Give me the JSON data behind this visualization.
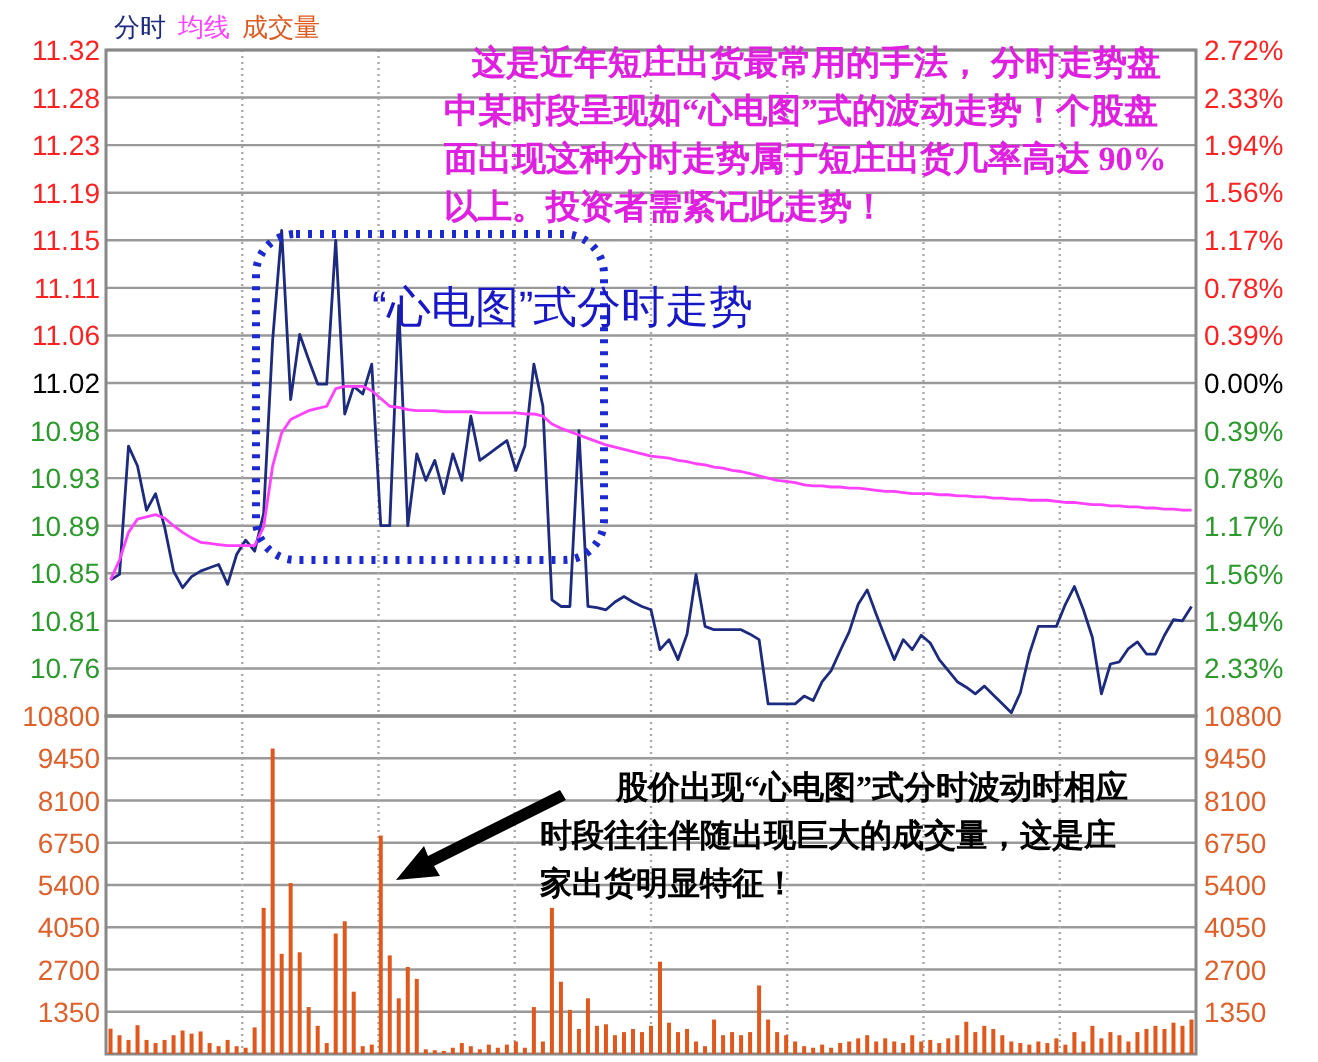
{
  "chart_data": [
    {
      "type": "line",
      "categories": [
        null,
        null,
        null,
        null,
        null,
        null,
        null,
        null,
        null,
        null,
        null,
        null,
        null,
        null,
        null,
        null,
        null,
        null,
        null,
        null,
        null,
        null,
        null,
        null,
        null,
        null,
        null,
        null,
        null,
        null,
        null,
        null,
        null,
        null,
        null,
        null,
        null,
        null,
        null,
        null,
        null,
        null,
        null,
        null,
        null,
        null,
        null,
        null,
        null,
        null,
        null,
        null,
        null,
        null,
        null,
        null,
        null,
        null,
        null,
        null,
        null,
        null,
        null,
        null,
        null,
        null,
        null,
        null,
        null,
        null,
        null,
        null,
        null,
        null,
        null,
        null,
        null,
        null,
        null,
        null,
        null,
        null,
        null,
        null,
        null,
        null,
        null,
        null,
        null,
        null,
        null,
        null,
        null,
        null,
        null,
        null,
        null,
        null,
        null,
        null,
        null,
        null,
        null,
        null,
        null,
        null,
        null,
        null,
        null,
        null,
        null,
        null,
        null,
        null,
        null,
        null,
        null,
        null,
        null,
        null,
        null
      ],
      "ylim": [
        10.719,
        11.321
      ],
      "yticks": [
        {
          "value": 11.321,
          "label": "11.32"
        },
        {
          "value": 11.278,
          "label": "11.28"
        },
        {
          "value": 11.235,
          "label": "11.23"
        },
        {
          "value": 11.192,
          "label": "11.19"
        },
        {
          "value": 11.149,
          "label": "11.15"
        },
        {
          "value": 11.106,
          "label": "11.11"
        },
        {
          "value": 11.063,
          "label": "11.06"
        },
        {
          "value": 11.02,
          "label": "11.02"
        },
        {
          "value": 10.977,
          "label": "10.98"
        },
        {
          "value": 10.934,
          "label": "10.93"
        },
        {
          "value": 10.891,
          "label": "10.89"
        },
        {
          "value": 10.848,
          "label": "10.85"
        },
        {
          "value": 10.805,
          "label": "10.81"
        },
        {
          "value": 10.762,
          "label": "10.76"
        }
      ],
      "y2lim": [
        -2.72,
        2.72
      ],
      "y2ticks": [
        {
          "value": 2.72,
          "label": "2.72%"
        },
        {
          "value": 2.33,
          "label": "2.33%"
        },
        {
          "value": 1.94,
          "label": "1.94%"
        },
        {
          "value": 1.56,
          "label": "1.56%"
        },
        {
          "value": 1.17,
          "label": "1.17%"
        },
        {
          "value": 0.78,
          "label": "0.78%"
        },
        {
          "value": 0.39,
          "label": "0.39%"
        },
        {
          "value": 0,
          "label": "0.00%"
        },
        {
          "value": -0.39,
          "label": "0.39%"
        },
        {
          "value": -0.78,
          "label": "0.78%"
        },
        {
          "value": -1.17,
          "label": "1.17%"
        },
        {
          "value": -1.56,
          "label": "1.56%"
        },
        {
          "value": -1.94,
          "label": "1.94%"
        },
        {
          "value": -2.33,
          "label": "2.33%"
        }
      ],
      "grid": true,
      "tick_labels": "y",
      "series": [
        {
          "name": "分时",
          "color": "#1c2a80",
          "values": [
            10.842,
            10.847,
            10.963,
            10.945,
            10.905,
            10.92,
            10.89,
            10.85,
            10.835,
            10.845,
            10.85,
            10.853,
            10.856,
            10.838,
            10.865,
            10.878,
            10.868,
            10.902,
            11.059,
            11.158,
            11.005,
            11.064,
            11.041,
            11.019,
            11.019,
            11.149,
            10.992,
            11.017,
            11.01,
            11.037,
            10.891,
            10.891,
            11.09,
            10.891,
            10.956,
            10.932,
            10.95,
            10.92,
            10.956,
            10.932,
            10.99,
            10.95,
            10.956,
            10.962,
            10.968,
            10.941,
            10.963,
            11.037,
            10.999,
            10.824,
            10.818,
            10.818,
            10.977,
            10.818,
            10.817,
            10.815,
            10.822,
            10.827,
            10.822,
            10.818,
            10.815,
            10.779,
            10.788,
            10.77,
            10.793,
            10.847,
            10.8,
            10.797,
            10.797,
            10.797,
            10.797,
            10.793,
            10.788,
            10.73,
            10.73,
            10.73,
            10.73,
            10.737,
            10.733,
            10.75,
            10.76,
            10.778,
            10.795,
            10.82,
            10.833,
            10.811,
            10.79,
            10.77,
            10.788,
            10.779,
            10.792,
            10.785,
            10.77,
            10.76,
            10.75,
            10.745,
            10.739,
            10.746,
            10.738,
            10.73,
            10.722,
            10.74,
            10.775,
            10.8,
            10.8,
            10.8,
            10.82,
            10.836,
            10.815,
            10.79,
            10.739,
            10.766,
            10.768,
            10.78,
            10.786,
            10.775,
            10.775,
            10.792,
            10.806,
            10.805,
            10.818
          ]
        },
        {
          "name": "均线",
          "color": "#ff40ff",
          "values": [
            10.842,
            10.86,
            10.885,
            10.897,
            10.899,
            10.901,
            10.898,
            10.891,
            10.885,
            10.88,
            10.876,
            10.875,
            10.874,
            10.873,
            10.873,
            10.873,
            10.873,
            10.89,
            10.945,
            10.975,
            10.987,
            10.991,
            10.995,
            10.997,
            10.999,
            11.015,
            11.017,
            11.017,
            11.017,
            11.013,
            11.006,
            10.999,
            10.998,
            10.996,
            10.995,
            10.995,
            10.995,
            10.994,
            10.994,
            10.994,
            10.994,
            10.993,
            10.993,
            10.993,
            10.993,
            10.993,
            10.992,
            10.992,
            10.99,
            10.983,
            10.979,
            10.976,
            10.973,
            10.97,
            10.967,
            10.964,
            10.962,
            10.96,
            10.958,
            10.956,
            10.954,
            10.953,
            10.952,
            10.95,
            10.949,
            10.947,
            10.946,
            10.944,
            10.943,
            10.941,
            10.94,
            10.938,
            10.936,
            10.934,
            10.932,
            10.931,
            10.93,
            10.928,
            10.927,
            10.927,
            10.926,
            10.926,
            10.925,
            10.925,
            10.924,
            10.923,
            10.922,
            10.922,
            10.921,
            10.92,
            10.92,
            10.92,
            10.919,
            10.919,
            10.918,
            10.918,
            10.917,
            10.917,
            10.916,
            10.916,
            10.915,
            10.915,
            10.914,
            10.914,
            10.914,
            10.913,
            10.912,
            10.912,
            10.911,
            10.91,
            10.91,
            10.909,
            10.909,
            10.908,
            10.908,
            10.907,
            10.907,
            10.906,
            10.906,
            10.905,
            10.905
          ]
        }
      ],
      "annotations": [
        "这是近年短庄出货最常用的手法， 分时走势盘中某时段呈现如“心电图”式的波动走势！个股盘面出现这种分时走势属于短庄出货几率高达 90%以上。投资者需紧记此走势！",
        "“心电图”式分时走势"
      ]
    },
    {
      "type": "bar",
      "categories": [
        null,
        null,
        null,
        null,
        null,
        null,
        null,
        null,
        null,
        null,
        null,
        null,
        null,
        null,
        null,
        null,
        null,
        null,
        null,
        null,
        null,
        null,
        null,
        null,
        null,
        null,
        null,
        null,
        null,
        null,
        null,
        null,
        null,
        null,
        null,
        null,
        null,
        null,
        null,
        null,
        null,
        null,
        null,
        null,
        null,
        null,
        null,
        null,
        null,
        null,
        null,
        null,
        null,
        null,
        null,
        null,
        null,
        null,
        null,
        null,
        null,
        null,
        null,
        null,
        null,
        null,
        null,
        null,
        null,
        null,
        null,
        null,
        null,
        null,
        null,
        null,
        null,
        null,
        null,
        null,
        null,
        null,
        null,
        null,
        null,
        null,
        null,
        null,
        null,
        null,
        null,
        null,
        null,
        null,
        null,
        null,
        null,
        null,
        null,
        null,
        null,
        null,
        null,
        null,
        null,
        null,
        null,
        null,
        null,
        null,
        null,
        null,
        null,
        null,
        null,
        null,
        null,
        null,
        null,
        null,
        null
      ],
      "ylim": [
        0,
        10800
      ],
      "yticks": [
        1350,
        2700,
        4050,
        5400,
        6750,
        8100,
        9450,
        10800
      ],
      "y2lim": [
        0,
        10800
      ],
      "y2ticks": [
        1350,
        2700,
        4050,
        5400,
        6750,
        8100,
        9450,
        10800
      ],
      "grid": true,
      "tick_labels": "y",
      "series": [
        {
          "name": "成交量",
          "color": "#e0581c",
          "values": [
            810,
            600,
            450,
            920,
            450,
            350,
            450,
            600,
            750,
            650,
            720,
            350,
            250,
            450,
            250,
            200,
            850,
            4670,
            9760,
            3200,
            5460,
            3250,
            1500,
            900,
            350,
            3850,
            4240,
            1990,
            250,
            300,
            6980,
            3150,
            1780,
            2780,
            2400,
            150,
            120,
            100,
            200,
            350,
            250,
            150,
            300,
            200,
            300,
            400,
            200,
            1500,
            400,
            4670,
            2310,
            1410,
            800,
            1780,
            900,
            950,
            600,
            700,
            800,
            700,
            900,
            2950,
            1000,
            700,
            800,
            400,
            250,
            1100,
            600,
            700,
            600,
            700,
            2190,
            1100,
            700,
            600,
            400,
            250,
            200,
            300,
            200,
            350,
            400,
            500,
            600,
            400,
            500,
            400,
            350,
            600,
            400,
            450,
            350,
            500,
            600,
            1030,
            700,
            900,
            800,
            600,
            400,
            350,
            300,
            400,
            350,
            500,
            300,
            700,
            400,
            900,
            500,
            700,
            600,
            400,
            700,
            800,
            900,
            800,
            1000,
            900,
            1100
          ]
        }
      ],
      "annotations": [
        "股价出现“心电图”式分时波动时相应时段往往伴随出现巨大的成交量，这是庄家出货明显特征！"
      ]
    }
  ]
}
